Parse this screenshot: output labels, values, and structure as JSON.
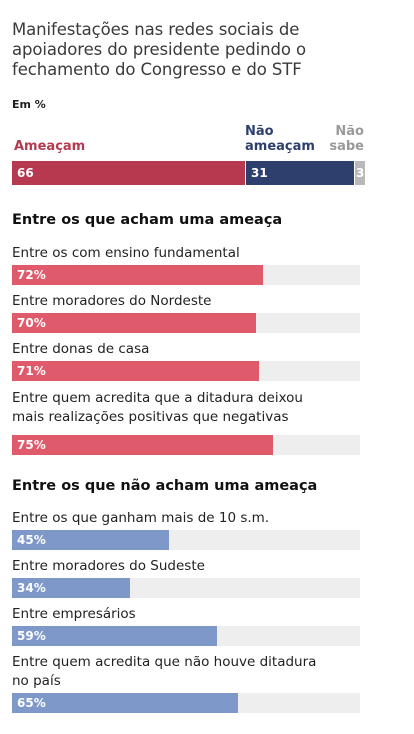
{
  "title": "Manifestações nas redes sociais de apoiadores do presidente pedindo o fechamento do Congresso e do STF",
  "unit": "Em %",
  "colors": {
    "threat": "#b6394f",
    "not_threat": "#2e3f6e",
    "dont_know": "#b9b9b9",
    "threat_light": "#df5b6b",
    "not_threat_light": "#7d98c9",
    "track": "#eeeeee"
  },
  "chart_data": [
    {
      "type": "bar",
      "categories": [
        "Ameaçam",
        "Não ameaçam",
        "Não sabe"
      ],
      "values": [
        66,
        31,
        3
      ],
      "value_labels": [
        "66",
        "31",
        "3"
      ],
      "xlim": [
        0,
        100
      ],
      "legend_labels": [
        "Ameaçam",
        "Não ameaçam",
        "Não sabe"
      ]
    },
    {
      "type": "bar",
      "title": "Entre os que acham uma ameaça",
      "categories": [
        "Entre os com ensino fundamental",
        "Entre moradores do Nordeste",
        "Entre donas de casa",
        "Entre quem acredita que a ditadura deixou mais realizações positivas que negativas"
      ],
      "values": [
        72,
        70,
        71,
        75
      ],
      "value_labels": [
        "72%",
        "70%",
        "71%",
        "75%"
      ],
      "xlim": [
        0,
        100
      ]
    },
    {
      "type": "bar",
      "title": "Entre os que não acham uma ameaça",
      "categories": [
        "Entre os que ganham mais de 10 s.m.",
        "Entre moradores do Sudeste",
        "Entre empresários",
        "Entre quem acredita que não houve ditadura no país"
      ],
      "values": [
        45,
        34,
        59,
        65
      ],
      "value_labels": [
        "45%",
        "34%",
        "59%",
        "65%"
      ],
      "xlim": [
        0,
        100
      ]
    }
  ]
}
